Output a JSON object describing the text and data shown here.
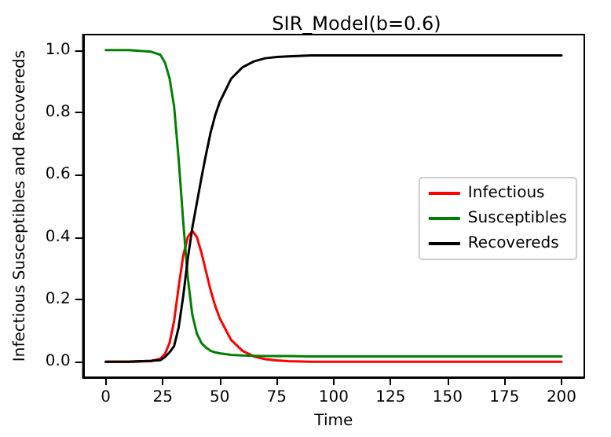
{
  "chart_data": {
    "type": "line",
    "title": "SIR_Model(b=0.6)",
    "xlabel": "Time",
    "ylabel": "Infectious Susceptibles and Recovereds",
    "x": [
      0,
      10,
      20,
      24,
      26,
      28,
      30,
      32,
      34,
      36,
      38,
      40,
      42,
      44,
      46,
      48,
      50,
      55,
      60,
      65,
      70,
      75,
      80,
      90,
      100,
      125,
      150,
      175,
      200
    ],
    "series": [
      {
        "name": "Infectious",
        "color": "#ff0000",
        "values": [
          0,
          0,
          0.002,
          0.01,
          0.025,
          0.06,
          0.13,
          0.24,
          0.34,
          0.4,
          0.42,
          0.4,
          0.35,
          0.29,
          0.23,
          0.18,
          0.14,
          0.07,
          0.035,
          0.017,
          0.008,
          0.004,
          0.002,
          0,
          0,
          0,
          0,
          0,
          0
        ]
      },
      {
        "name": "Susceptibles",
        "color": "#008000",
        "values": [
          1,
          1,
          0.995,
          0.985,
          0.96,
          0.91,
          0.82,
          0.65,
          0.45,
          0.27,
          0.15,
          0.09,
          0.06,
          0.045,
          0.035,
          0.03,
          0.027,
          0.022,
          0.02,
          0.019,
          0.018,
          0.018,
          0.018,
          0.017,
          0.017,
          0.017,
          0.017,
          0.017,
          0.017
        ]
      },
      {
        "name": "Recovereds",
        "color": "#000000",
        "values": [
          0,
          0,
          0.003,
          0.005,
          0.015,
          0.03,
          0.05,
          0.11,
          0.21,
          0.33,
          0.43,
          0.51,
          0.59,
          0.665,
          0.735,
          0.79,
          0.833,
          0.908,
          0.945,
          0.964,
          0.974,
          0.978,
          0.98,
          0.983,
          0.983,
          0.983,
          0.983,
          0.983,
          0.983
        ]
      }
    ],
    "xlim": [
      -10,
      210
    ],
    "xticks": [
      0,
      25,
      50,
      75,
      100,
      125,
      150,
      175,
      200
    ],
    "ylim": [
      -0.05,
      1.05
    ],
    "yticks": [
      {
        "value": 0,
        "label": "0.0"
      },
      {
        "value": 0.2,
        "label": "0.2"
      },
      {
        "value": 0.4,
        "label": "0.4"
      },
      {
        "value": 0.6,
        "label": "0.6"
      },
      {
        "value": 0.8,
        "label": "0.8"
      },
      {
        "value": 1,
        "label": "1.0"
      }
    ],
    "legend": "right",
    "grid": false,
    "marker": "none",
    "line_style": "solid"
  }
}
